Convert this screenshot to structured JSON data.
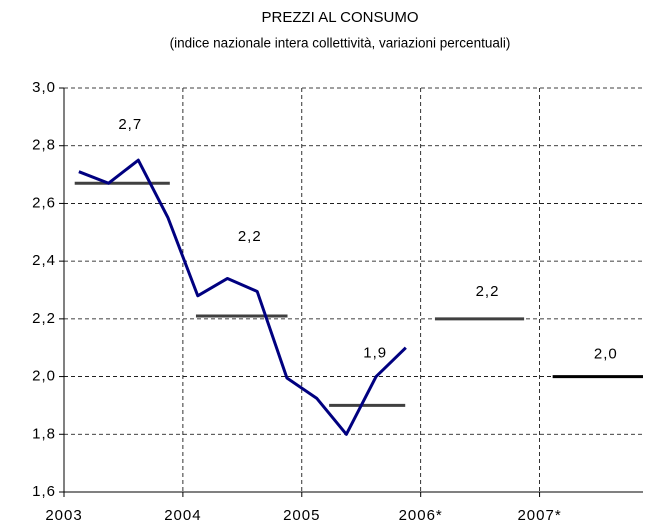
{
  "chart_data": {
    "type": "line",
    "title": "PREZZI AL CONSUMO",
    "subtitle": "(indice nazionale intera collettività, variazioni percentuali)",
    "x": [
      2003.125,
      2003.375,
      2003.625,
      2003.875,
      2004.125,
      2004.375,
      2004.625,
      2004.875,
      2005.125,
      2005.375,
      2005.625,
      2005.875
    ],
    "series": [
      {
        "color": "#000080",
        "values": [
          2.71,
          2.67,
          2.75,
          2.55,
          2.28,
          2.34,
          2.295,
          1.995,
          1.925,
          1.8,
          2.0,
          2.1
        ]
      }
    ],
    "averages": {
      "values": [
        2.67,
        2.21,
        1.9,
        2.2,
        2.0
      ],
      "value_labels": [
        "2,7",
        "2,2",
        "1,9",
        "2,2",
        "2,0"
      ],
      "x_start": [
        2003.09,
        2004.11,
        2005.23,
        2006.12,
        2007.11
      ],
      "x_end": [
        2003.89,
        2004.88,
        2005.87,
        2006.87,
        2007.87
      ],
      "colors": [
        "#404040",
        "#404040",
        "#404040",
        "#404040",
        "#000000"
      ]
    },
    "xlim": [
      2003,
      2007.87
    ],
    "xticks": [
      2003,
      2004,
      2005,
      {
        "value": 2006,
        "label": "2006*"
      },
      {
        "value": 2007,
        "label": "2007*"
      }
    ],
    "ylim": [
      1.6,
      3.0
    ],
    "yticks": [
      {
        "value": 1.6,
        "label": "1,6"
      },
      {
        "value": 1.8,
        "label": "1,8"
      },
      {
        "value": 2.0,
        "label": "2,0"
      },
      {
        "value": 2.2,
        "label": "2,2"
      },
      {
        "value": 2.4,
        "label": "2,4"
      },
      {
        "value": 2.6,
        "label": "2,6"
      },
      {
        "value": 2.8,
        "label": "2,8"
      },
      {
        "value": 3.0,
        "label": "3,0"
      }
    ],
    "grid": true
  }
}
